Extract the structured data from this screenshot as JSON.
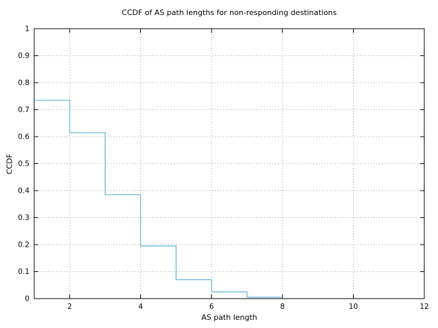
{
  "chart_data": {
    "type": "line",
    "subtype": "step-ccdf",
    "title": "CCDF of AS path lengths for non-responding destinations",
    "xlabel": "AS path length",
    "ylabel": "CCDF",
    "xlim": [
      1,
      12
    ],
    "ylim": [
      0,
      1
    ],
    "xticks": [
      2,
      4,
      6,
      8,
      10,
      12
    ],
    "yticks": [
      0,
      0.1,
      0.2,
      0.3,
      0.4,
      0.5,
      0.6,
      0.7,
      0.8,
      0.9,
      1
    ],
    "grid": "dotted",
    "legend_position": "none",
    "colors": {
      "line": "#5bb3d8",
      "axis": "#000000",
      "grid": "#999999",
      "background": "#ffffff"
    },
    "steps": {
      "x_edges": [
        1,
        2,
        3,
        4,
        5,
        6,
        7,
        8
      ],
      "ccdf_values": [
        0.735,
        0.615,
        0.385,
        0.195,
        0.07,
        0.025,
        0.005
      ]
    }
  }
}
